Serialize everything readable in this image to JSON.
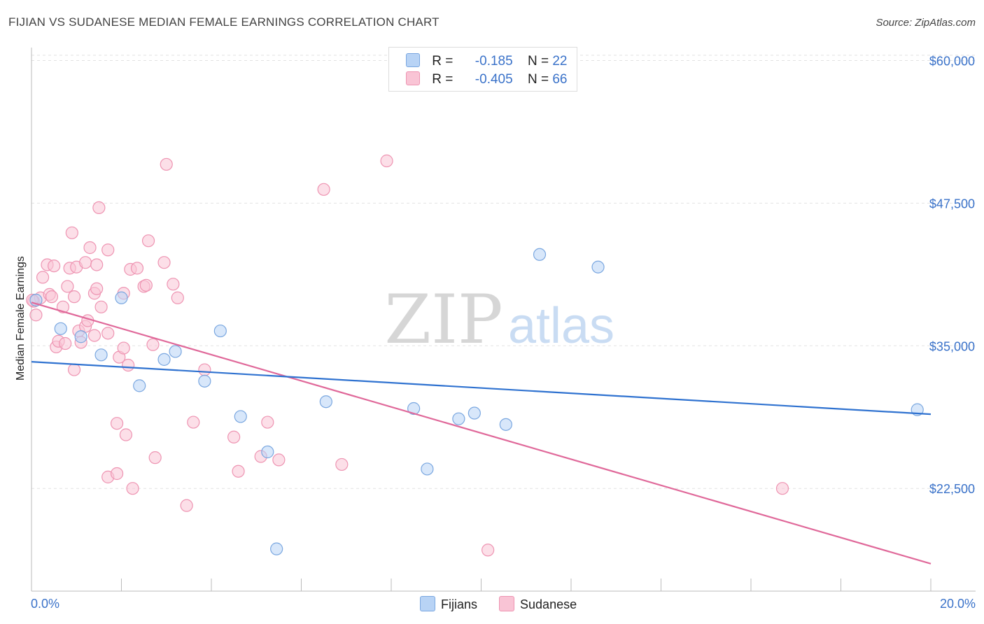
{
  "header": {
    "title": "FIJIAN VS SUDANESE MEDIAN FEMALE EARNINGS CORRELATION CHART",
    "source": "Source: ZipAtlas.com"
  },
  "legend": {
    "fijian": {
      "r_label": "R =",
      "r_value": "-0.185",
      "n_label": "N =",
      "n_value": "22"
    },
    "sudanese": {
      "r_label": "R =",
      "r_value": "-0.405",
      "n_label": "N =",
      "n_value": "66"
    }
  },
  "bottom_legend": {
    "fijian": "Fijians",
    "sudanese": "Sudanese"
  },
  "watermark": {
    "zip": "ZIP",
    "atlas": "atlas"
  },
  "colors": {
    "fijian_fill": "#b8d3f5",
    "fijian_stroke": "#7aa7e0",
    "fijian_line": "#2f72d0",
    "sudanese_fill": "#f9c4d5",
    "sudanese_stroke": "#ee94b2",
    "sudanese_line": "#e0699a",
    "axis_text": "#3a72c9"
  },
  "chart_data": {
    "type": "scatter",
    "title": "FIJIAN VS SUDANESE MEDIAN FEMALE EARNINGS CORRELATION CHART",
    "xlabel": "",
    "ylabel": "Median Female Earnings",
    "xlim": [
      0,
      20
    ],
    "ylim": [
      13500,
      61500
    ],
    "x_tick_labels": [
      "0.0%",
      "20.0%"
    ],
    "y_ticks": [
      22500,
      35000,
      47500,
      60000
    ],
    "y_tick_labels": [
      "$22,500",
      "$35,000",
      "$47,500",
      "$60,000"
    ],
    "grid": true,
    "series": [
      {
        "name": "Fijians",
        "r": -0.185,
        "n": 22,
        "trend": {
          "x": [
            0,
            20
          ],
          "y": [
            33600,
            29000
          ]
        },
        "points": [
          {
            "x": 0.1,
            "y": 39000
          },
          {
            "x": 0.65,
            "y": 36500
          },
          {
            "x": 1.1,
            "y": 35800
          },
          {
            "x": 1.55,
            "y": 34200
          },
          {
            "x": 2.0,
            "y": 39200
          },
          {
            "x": 2.4,
            "y": 31500
          },
          {
            "x": 2.95,
            "y": 33800
          },
          {
            "x": 3.2,
            "y": 34500
          },
          {
            "x": 3.85,
            "y": 31900
          },
          {
            "x": 4.2,
            "y": 36300
          },
          {
            "x": 4.65,
            "y": 28800
          },
          {
            "x": 5.25,
            "y": 25700
          },
          {
            "x": 5.45,
            "y": 17200
          },
          {
            "x": 6.55,
            "y": 30100
          },
          {
            "x": 8.5,
            "y": 29500
          },
          {
            "x": 8.8,
            "y": 24200
          },
          {
            "x": 9.5,
            "y": 28600
          },
          {
            "x": 9.85,
            "y": 29100
          },
          {
            "x": 10.55,
            "y": 28100
          },
          {
            "x": 11.3,
            "y": 43000
          },
          {
            "x": 12.6,
            "y": 41900
          },
          {
            "x": 19.7,
            "y": 29400
          }
        ]
      },
      {
        "name": "Sudanese",
        "r": -0.405,
        "n": 66,
        "trend": {
          "x": [
            0,
            20
          ],
          "y": [
            38800,
            15900
          ]
        },
        "points": [
          {
            "x": 0.05,
            "y": 38900
          },
          {
            "x": 0.1,
            "y": 37700
          },
          {
            "x": 0.2,
            "y": 39200
          },
          {
            "x": 0.25,
            "y": 41000
          },
          {
            "x": 0.35,
            "y": 42100
          },
          {
            "x": 0.4,
            "y": 39500
          },
          {
            "x": 0.45,
            "y": 39300
          },
          {
            "x": 0.5,
            "y": 42000
          },
          {
            "x": 0.55,
            "y": 34900
          },
          {
            "x": 0.6,
            "y": 35400
          },
          {
            "x": 0.7,
            "y": 38400
          },
          {
            "x": 0.75,
            "y": 35200
          },
          {
            "x": 0.8,
            "y": 40200
          },
          {
            "x": 0.85,
            "y": 41800
          },
          {
            "x": 0.9,
            "y": 44900
          },
          {
            "x": 0.95,
            "y": 39300
          },
          {
            "x": 1.0,
            "y": 41900
          },
          {
            "x": 0.95,
            "y": 32900
          },
          {
            "x": 1.05,
            "y": 36300
          },
          {
            "x": 1.1,
            "y": 35300
          },
          {
            "x": 1.2,
            "y": 36700
          },
          {
            "x": 1.2,
            "y": 42300
          },
          {
            "x": 1.25,
            "y": 37200
          },
          {
            "x": 1.3,
            "y": 43600
          },
          {
            "x": 1.4,
            "y": 39600
          },
          {
            "x": 1.4,
            "y": 35900
          },
          {
            "x": 1.45,
            "y": 40000
          },
          {
            "x": 1.5,
            "y": 47100
          },
          {
            "x": 1.55,
            "y": 38400
          },
          {
            "x": 1.45,
            "y": 42100
          },
          {
            "x": 1.7,
            "y": 23500
          },
          {
            "x": 1.7,
            "y": 36100
          },
          {
            "x": 1.7,
            "y": 43400
          },
          {
            "x": 1.9,
            "y": 23800
          },
          {
            "x": 1.9,
            "y": 28200
          },
          {
            "x": 1.95,
            "y": 34000
          },
          {
            "x": 2.05,
            "y": 34800
          },
          {
            "x": 2.05,
            "y": 39600
          },
          {
            "x": 2.1,
            "y": 27200
          },
          {
            "x": 2.15,
            "y": 33300
          },
          {
            "x": 2.2,
            "y": 41700
          },
          {
            "x": 2.25,
            "y": 22500
          },
          {
            "x": 2.35,
            "y": 41800
          },
          {
            "x": 2.5,
            "y": 40200
          },
          {
            "x": 2.55,
            "y": 40300
          },
          {
            "x": 2.6,
            "y": 44200
          },
          {
            "x": 2.7,
            "y": 35100
          },
          {
            "x": 2.75,
            "y": 25200
          },
          {
            "x": 2.95,
            "y": 42300
          },
          {
            "x": 3.0,
            "y": 50900
          },
          {
            "x": 3.15,
            "y": 40400
          },
          {
            "x": 3.25,
            "y": 39200
          },
          {
            "x": 3.45,
            "y": 21000
          },
          {
            "x": 3.6,
            "y": 28300
          },
          {
            "x": 3.85,
            "y": 32900
          },
          {
            "x": 4.5,
            "y": 27000
          },
          {
            "x": 4.6,
            "y": 24000
          },
          {
            "x": 5.1,
            "y": 25300
          },
          {
            "x": 5.25,
            "y": 28300
          },
          {
            "x": 5.5,
            "y": 25000
          },
          {
            "x": 6.5,
            "y": 48700
          },
          {
            "x": 6.9,
            "y": 24600
          },
          {
            "x": 7.9,
            "y": 51200
          },
          {
            "x": 10.15,
            "y": 17100
          },
          {
            "x": 16.7,
            "y": 22500
          },
          {
            "x": 0.02,
            "y": 39000
          }
        ]
      }
    ]
  }
}
